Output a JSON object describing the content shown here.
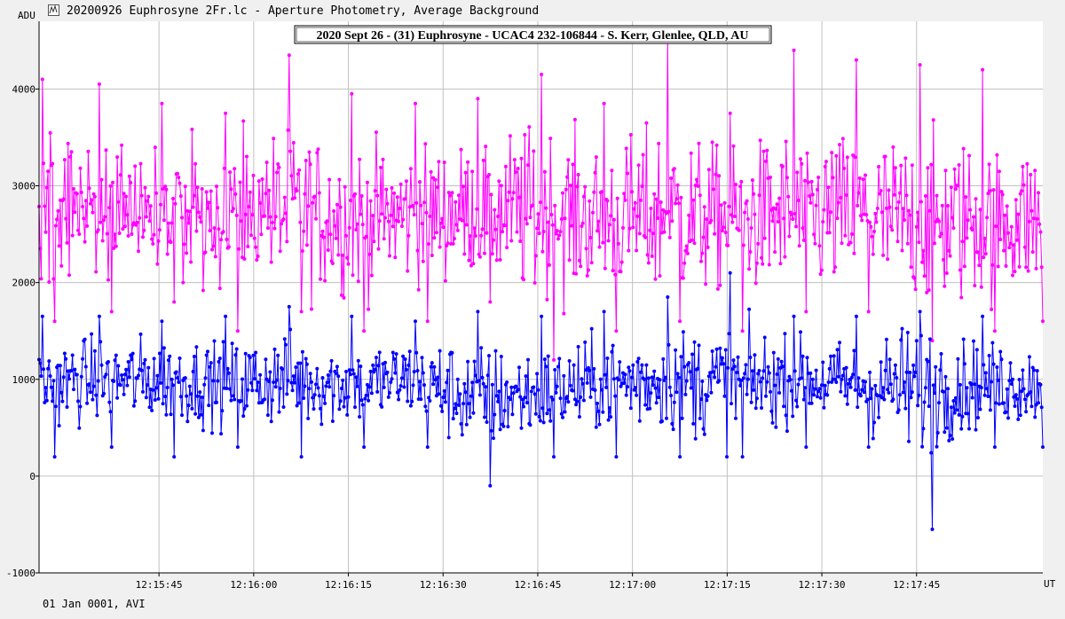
{
  "window": {
    "title": "20200926 Euphrosyne 2Fr.lc - Aperture Photometry, Average Background",
    "icon": "lightcurve-app-icon"
  },
  "footer": {
    "text": "01 Jan 0001, AVI"
  },
  "colors": {
    "target": "#ff00ff",
    "comparison": "#0000ff",
    "grid": "#c0c0c0",
    "plot_background": "#ffffff"
  },
  "chart_data": {
    "type": "line",
    "title": "2020 Sept 26 - (31) Euphrosyne - UCAC4 232-106844 - S. Kerr, Glenlee, QLD, AU",
    "ylabel": "ADU",
    "xlabel": "UT",
    "ylim": [
      -1000,
      4700
    ],
    "yticks": [
      -1000,
      0,
      1000,
      2000,
      3000,
      4000
    ],
    "xlim": [
      "12:15:26",
      "12:18:05"
    ],
    "xticks": [
      "12:15:45",
      "12:16:00",
      "12:16:15",
      "12:16:30",
      "12:16:45",
      "12:17:00",
      "12:17:15",
      "12:17:30",
      "12:17:45"
    ],
    "grid": true,
    "markers": true,
    "series": [
      {
        "color": "#ff00ff",
        "x": [
          "12:15:26",
          "12:15:35",
          "12:15:45",
          "12:15:55",
          "12:16:05",
          "12:16:15",
          "12:16:25",
          "12:16:35",
          "12:16:45",
          "12:16:55",
          "12:17:05",
          "12:17:15",
          "12:17:25",
          "12:17:35",
          "12:17:45",
          "12:17:55",
          "12:18:05"
        ],
        "mean": [
          2750,
          2800,
          2750,
          2700,
          2750,
          2650,
          2700,
          2750,
          2700,
          2650,
          2700,
          2650,
          2700,
          2700,
          2600,
          2650,
          2650
        ],
        "min": [
          1600,
          1700,
          1800,
          1500,
          1700,
          1500,
          1600,
          1800,
          1200,
          1500,
          1600,
          1500,
          1700,
          1700,
          1400,
          1500,
          1600
        ],
        "max": [
          4100,
          4050,
          3850,
          3750,
          4350,
          3950,
          3850,
          3900,
          4150,
          3850,
          4550,
          3750,
          4400,
          4300,
          4250,
          4200,
          3950
        ]
      },
      {
        "color": "#0000ff",
        "x": [
          "12:15:26",
          "12:15:35",
          "12:15:45",
          "12:15:55",
          "12:16:05",
          "12:16:15",
          "12:16:25",
          "12:16:35",
          "12:16:45",
          "12:16:55",
          "12:17:05",
          "12:17:15",
          "12:17:25",
          "12:17:35",
          "12:17:45",
          "12:17:55",
          "12:18:05"
        ],
        "mean": [
          950,
          1000,
          1000,
          950,
          1000,
          950,
          1000,
          800,
          850,
          950,
          1000,
          950,
          1000,
          950,
          900,
          950,
          950
        ],
        "min": [
          200,
          300,
          200,
          300,
          200,
          300,
          300,
          -100,
          200,
          200,
          200,
          200,
          300,
          300,
          -550,
          300,
          300
        ],
        "max": [
          1650,
          1650,
          1600,
          1650,
          1750,
          1650,
          1600,
          1700,
          1650,
          1700,
          1850,
          2100,
          1650,
          1650,
          1700,
          1650,
          1600
        ]
      }
    ]
  }
}
